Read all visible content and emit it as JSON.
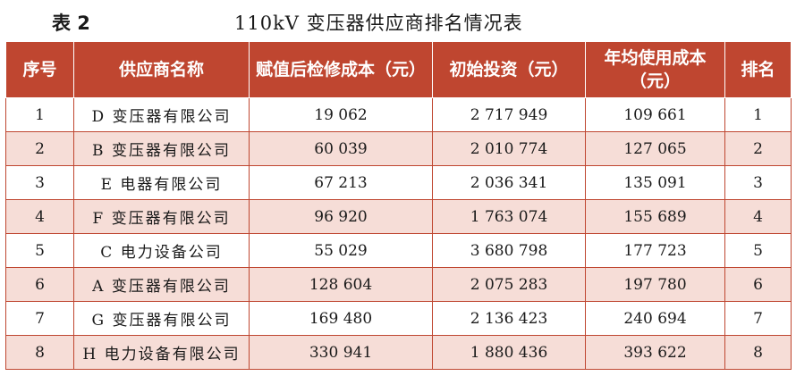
{
  "caption": {
    "label": "表 2",
    "title": "110kV 变压器供应商排名情况表"
  },
  "headers": [
    "序号",
    "供应商名称",
    "赋值后检修成本（元）",
    "初始投资（元）",
    "年均使用成本（元）",
    "排名"
  ],
  "rows": [
    [
      "1",
      "D 变压器有限公司",
      "19 062",
      "2 717 949",
      "109 661",
      "1"
    ],
    [
      "2",
      "B 变压器有限公司",
      "60 039",
      "2 010 774",
      "127 065",
      "2"
    ],
    [
      "3",
      "E 电器有限公司",
      "67 213",
      "2 036 341",
      "135 091",
      "3"
    ],
    [
      "4",
      "F 变压器有限公司",
      "96 920",
      "1 763 074",
      "155 689",
      "4"
    ],
    [
      "5",
      "C 电力设备公司",
      "55 029",
      "3 680 798",
      "177 723",
      "5"
    ],
    [
      "6",
      "A 变压器有限公司",
      "128 604",
      "2 075 283",
      "197 780",
      "6"
    ],
    [
      "7",
      "G 变压器有限公司",
      "169 480",
      "2 136 423",
      "240 694",
      "7"
    ],
    [
      "8",
      "H 电力设备有限公司",
      "330 941",
      "1 880 436",
      "393 622",
      "8"
    ]
  ],
  "colors": {
    "header_bg": "#bf4630",
    "stripe_bg": "#f6ddd7",
    "border": "#bf4630"
  }
}
